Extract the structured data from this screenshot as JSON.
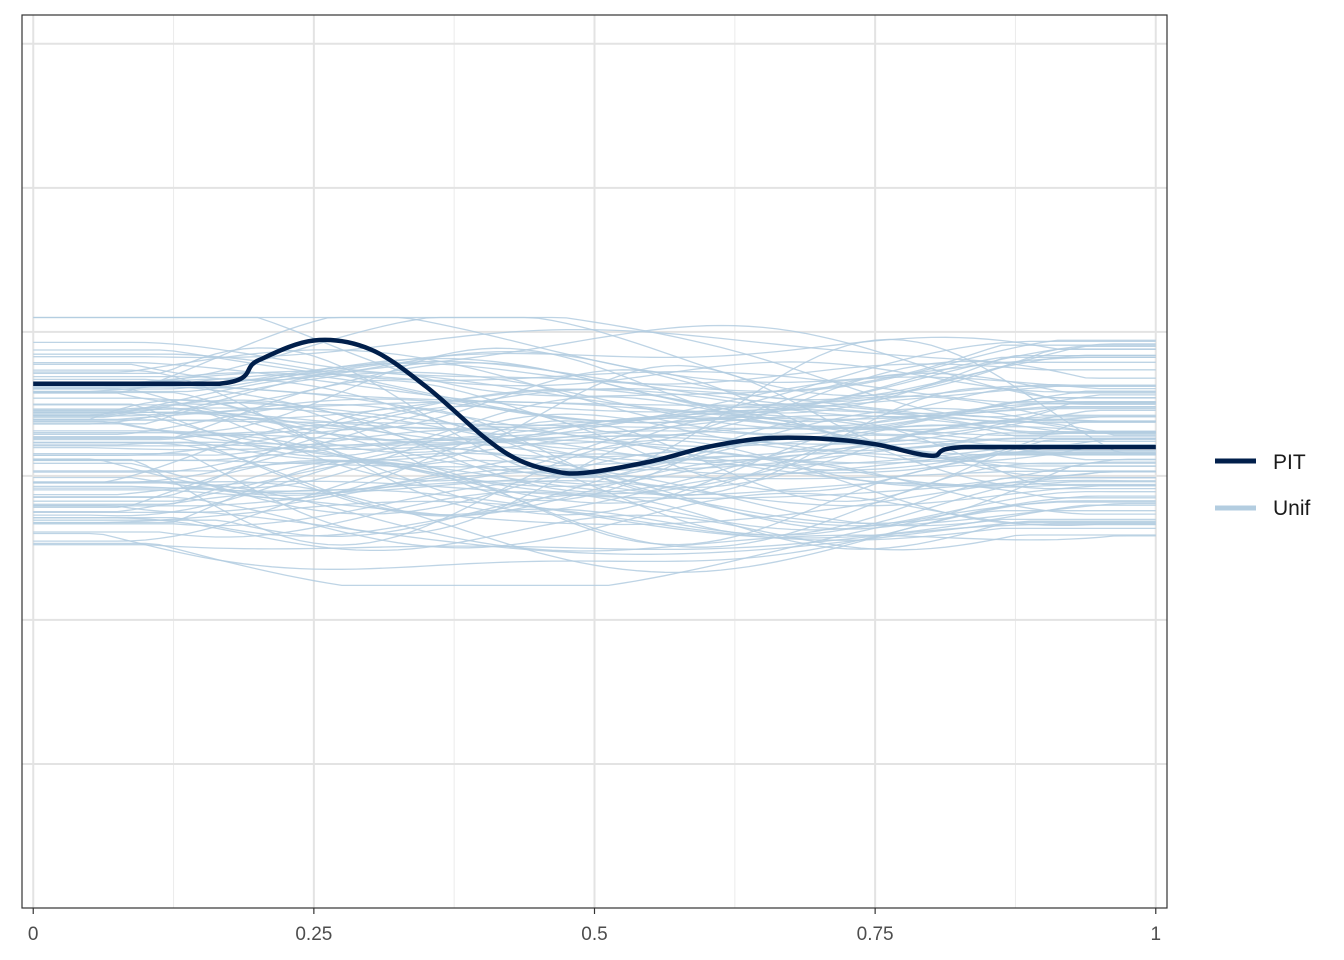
{
  "chart_data": {
    "type": "line",
    "title": "",
    "xlabel": "",
    "ylabel": "",
    "xlim": [
      -0.01,
      1.01
    ],
    "ylim": [
      0,
      3.1
    ],
    "x_ticks": [
      0,
      0.25,
      0.5,
      0.75,
      1
    ],
    "x_tick_labels": [
      "0",
      "0.25",
      "0.5",
      "0.75",
      "1"
    ],
    "x_minor_ticks": [
      0.125,
      0.375,
      0.625,
      0.875
    ],
    "y_gridlines": [
      0.5,
      1.0,
      1.5,
      2.0,
      2.5,
      3.0
    ],
    "y_tick_labels": [],
    "grid": true,
    "legend_position": "right",
    "series": [
      {
        "name": "PIT",
        "color": "#011f4b",
        "x": [
          0,
          0.166,
          0.2,
          0.25,
          0.3,
          0.35,
          0.4,
          0.43,
          0.46,
          0.49,
          0.55,
          0.6,
          0.65,
          0.7,
          0.75,
          0.8,
          0.83,
          1.0
        ],
        "y": [
          1.82,
          1.82,
          1.9,
          1.97,
          1.94,
          1.81,
          1.64,
          1.56,
          1.52,
          1.51,
          1.55,
          1.6,
          1.63,
          1.63,
          1.61,
          1.57,
          1.6,
          1.6
        ]
      }
    ],
    "reference_series": {
      "name": "Unif",
      "color": "#b3cde0",
      "count": 100,
      "y_range": [
        1.2,
        2.0
      ]
    }
  }
}
